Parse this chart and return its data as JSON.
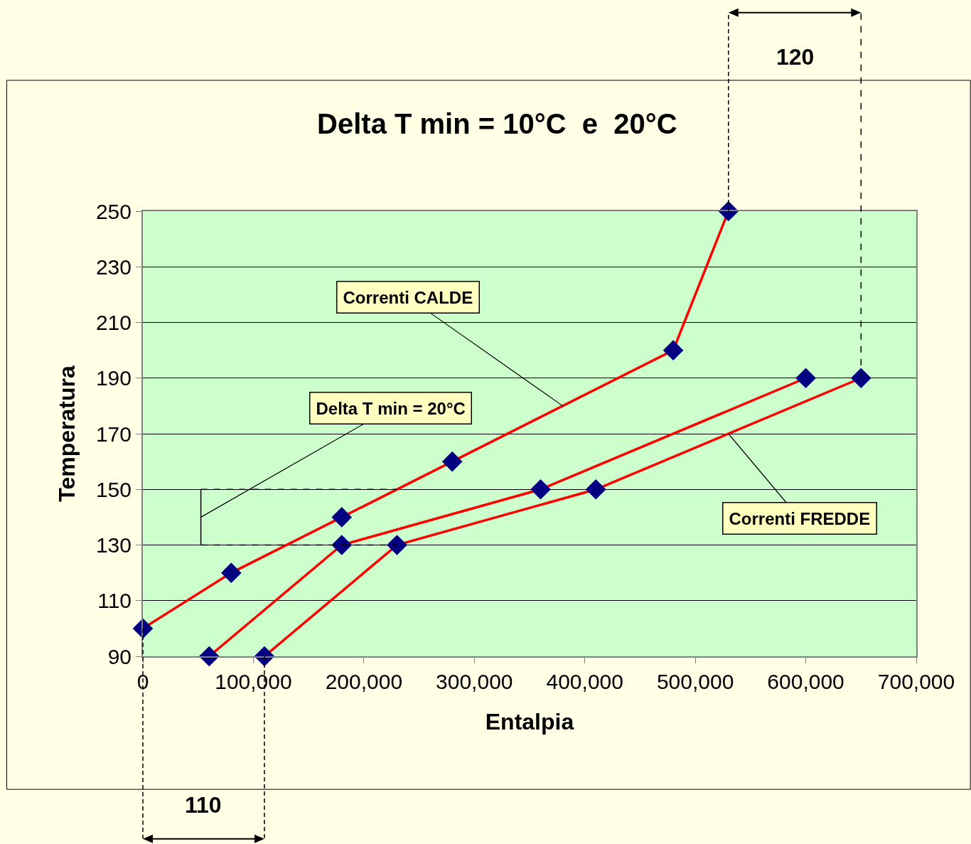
{
  "chart_data": {
    "type": "line",
    "title": "Delta T min = 10°C  e  20°C",
    "xlabel": "Entalpia",
    "ylabel": "Temperatura",
    "series": [
      {
        "color": "#ff0000",
        "x": [
          0,
          80000,
          180000,
          280000,
          480000,
          530000
        ],
        "values": [
          100,
          120,
          140,
          160,
          200,
          250
        ]
      },
      {
        "color": "#ff0000",
        "x": [
          60000,
          180000,
          360000,
          600000
        ],
        "values": [
          90,
          130,
          150,
          190
        ]
      },
      {
        "color": "#ff0000",
        "x": [
          110000,
          230000,
          410000,
          650000
        ],
        "values": [
          90,
          130,
          150,
          190
        ]
      }
    ],
    "xlim": [
      0,
      700000
    ],
    "xticks": [
      {
        "value": 0,
        "label": "0"
      },
      {
        "value": 100000,
        "label": "100,000"
      },
      {
        "value": 200000,
        "label": "200,000"
      },
      {
        "value": 300000,
        "label": "300,000"
      },
      {
        "value": 400000,
        "label": "400,000"
      },
      {
        "value": 500000,
        "label": "500,000"
      },
      {
        "value": 600000,
        "label": "600,000"
      },
      {
        "value": 700000,
        "label": "700,000"
      }
    ],
    "ylim": [
      90,
      250
    ],
    "yticks": [
      90,
      110,
      130,
      150,
      170,
      190,
      210,
      230,
      250
    ],
    "grid": "y",
    "marker": "diamond",
    "line_style": "solid",
    "ref_lines": [
      {
        "axis": "x",
        "value": 650000,
        "line_style": "dashed",
        "color": "#000000"
      },
      {
        "axis": "y",
        "value": 130,
        "line_style": "dashed",
        "color": "#000000"
      },
      {
        "axis": "y",
        "value": 150,
        "line_style": "dashed",
        "color": "#000000"
      }
    ],
    "annotations": [
      {
        "text": "Correnti CALDE",
        "x": 380000,
        "y": 180
      },
      {
        "text": "Correnti FREDDE",
        "x": 530000,
        "y": 170
      },
      "Delta T min = 20°C",
      "110",
      "120"
    ]
  }
}
